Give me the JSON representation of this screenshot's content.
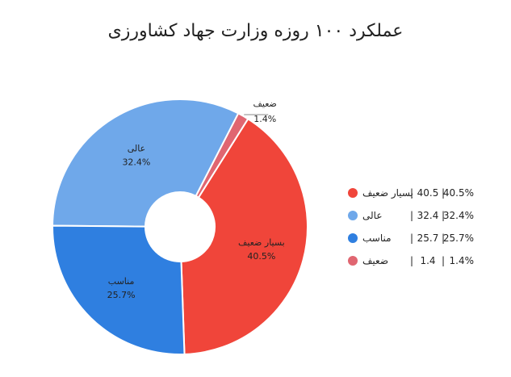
{
  "chart_data": {
    "type": "pie",
    "donut": true,
    "title": "عملکرد ۱۰۰ روزه وزارت جهاد کشاورزی",
    "slices": [
      {
        "label": "بسیار ضعیف",
        "value": 40.5,
        "percent": "40.5%",
        "color": "#f0453a"
      },
      {
        "label": "ضعیف",
        "value": 1.4,
        "percent": "1.4%",
        "color": "#e06671"
      },
      {
        "label": "عالی",
        "value": 32.4,
        "percent": "32.4%",
        "color": "#6fa8ea"
      },
      {
        "label": "مناسب",
        "value": 25.7,
        "percent": "25.7%",
        "color": "#2f7fe0"
      }
    ],
    "legend": {
      "placement": "right",
      "items": [
        {
          "label": "بسیار ضعیف",
          "value": "40.5",
          "percent": "40.5%",
          "color": "#f0453a"
        },
        {
          "label": "عالی",
          "value": "32.4",
          "percent": "32.4%",
          "color": "#6fa8ea"
        },
        {
          "label": "مناسب",
          "value": "25.7",
          "percent": "25.7%",
          "color": "#2f7fe0"
        },
        {
          "label": "ضعیف",
          "value": "1.4",
          "percent": "1.4%",
          "color": "#e06671"
        }
      ]
    }
  }
}
